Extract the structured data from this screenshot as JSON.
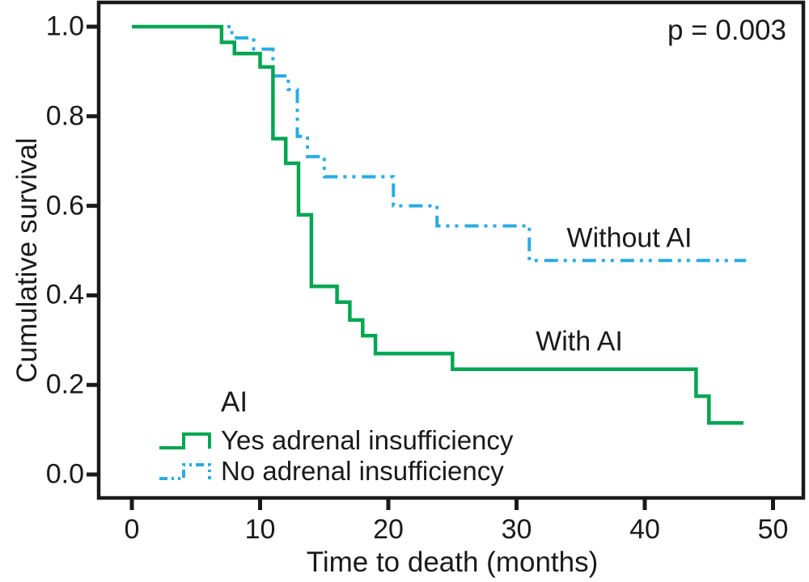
{
  "figure": {
    "background": "#ffffff",
    "text_color": "#1a1a1a",
    "axis_color": "#1a1a1a"
  },
  "chart_data": {
    "type": "line",
    "subtype": "kaplan-meier-step",
    "title": "",
    "xlabel": "Time to death (months)",
    "ylabel": "Cumulative survival",
    "xlim": [
      0,
      52.5
    ],
    "ylim": [
      0.0,
      1.05
    ],
    "grid": false,
    "x_ticks": {
      "values": [
        0,
        10,
        20,
        30,
        40,
        50
      ],
      "labels": [
        "0",
        "10",
        "20",
        "30",
        "40",
        "50"
      ]
    },
    "y_ticks": {
      "values": [
        1.0,
        0.8,
        0.6,
        0.4,
        0.2,
        0.0
      ],
      "labels": [
        "1.0",
        "0.8",
        "0.6",
        "0.4",
        "0.2",
        "0.0"
      ]
    },
    "annotations": {
      "p_value": "p = 0.003"
    },
    "series": [
      {
        "name": "Yes adrenal insufficiency",
        "curve_label": "With AI",
        "color": "#00a651",
        "line_style": "solid",
        "steps": [
          [
            0,
            1.0
          ],
          [
            7,
            0.965
          ],
          [
            8,
            0.94
          ],
          [
            10,
            0.91
          ],
          [
            11,
            0.75
          ],
          [
            12,
            0.695
          ],
          [
            13,
            0.58
          ],
          [
            14,
            0.42
          ],
          [
            16,
            0.385
          ],
          [
            17,
            0.345
          ],
          [
            18,
            0.31
          ],
          [
            19,
            0.27
          ],
          [
            25,
            0.235
          ],
          [
            44,
            0.175
          ],
          [
            45,
            0.115
          ]
        ],
        "end_time": 47.7
      },
      {
        "name": "No adrenal insufficiency",
        "curve_label": "Without AI",
        "color": "#29abe2",
        "line_style": "dash-dot-dot",
        "steps": [
          [
            0,
            1.0
          ],
          [
            7.8,
            0.975
          ],
          [
            9.5,
            0.95
          ],
          [
            11,
            0.89
          ],
          [
            12.2,
            0.86
          ],
          [
            12.9,
            0.755
          ],
          [
            13.7,
            0.71
          ],
          [
            15,
            0.665
          ],
          [
            20.4,
            0.6
          ],
          [
            23.8,
            0.555
          ],
          [
            31,
            0.478
          ]
        ],
        "end_time": 47.9
      }
    ],
    "legend": {
      "title": "AI",
      "position": "lower-left-inside",
      "entries": [
        {
          "label": "Yes adrenal insufficiency",
          "series": 0
        },
        {
          "label": "No adrenal insufficiency",
          "series": 1
        }
      ]
    }
  }
}
